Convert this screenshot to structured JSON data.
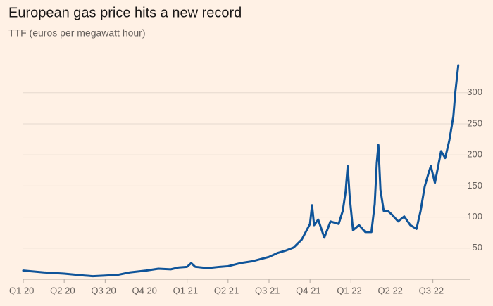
{
  "chart_data": {
    "type": "line",
    "title": "European gas price hits a new record",
    "subtitle": "TTF (euros per megawatt hour)",
    "x": [
      0,
      0.5,
      1.0,
      1.5,
      1.7,
      2.0,
      2.3,
      2.6,
      3.0,
      3.3,
      3.6,
      3.8,
      4.0,
      4.1,
      4.2,
      4.5,
      4.8,
      5.0,
      5.3,
      5.6,
      6.0,
      6.2,
      6.4,
      6.6,
      6.8,
      7.0,
      7.05,
      7.1,
      7.2,
      7.35,
      7.5,
      7.7,
      7.8,
      7.87,
      7.92,
      7.97,
      8.05,
      8.2,
      8.35,
      8.5,
      8.58,
      8.63,
      8.67,
      8.72,
      8.8,
      8.9,
      9.0,
      9.15,
      9.3,
      9.45,
      9.6,
      9.7,
      9.8,
      9.9,
      9.95,
      10.05,
      10.2,
      10.3,
      10.4,
      10.5,
      10.55,
      10.62
    ],
    "series": [
      {
        "name": "TTF",
        "color": "#0f5499",
        "values": [
          14,
          11,
          9,
          6,
          5,
          6,
          7,
          11,
          14,
          17,
          16,
          19,
          20,
          26,
          20,
          18,
          20,
          21,
          26,
          29,
          36,
          42,
          46,
          51,
          64,
          89,
          119,
          87,
          96,
          67,
          93,
          89,
          110,
          141,
          182,
          132,
          79,
          87,
          76,
          76,
          121,
          187,
          216,
          144,
          110,
          110,
          104,
          93,
          101,
          87,
          81,
          110,
          149,
          172,
          182,
          155,
          206,
          195,
          223,
          262,
          302,
          344
        ]
      }
    ],
    "xlim": [
      0,
      10.9
    ],
    "xticks": [
      {
        "value": 0,
        "label": "Q1 20"
      },
      {
        "value": 1,
        "label": "Q2 20"
      },
      {
        "value": 2,
        "label": "Q3 20"
      },
      {
        "value": 3,
        "label": "Q4 20"
      },
      {
        "value": 4,
        "label": "Q1 21"
      },
      {
        "value": 5,
        "label": "Q2 21"
      },
      {
        "value": 6,
        "label": "Q3 21"
      },
      {
        "value": 7,
        "label": "Q4 21"
      },
      {
        "value": 8,
        "label": "Q1 22"
      },
      {
        "value": 9,
        "label": "Q2 22"
      },
      {
        "value": 10,
        "label": "Q3 22"
      }
    ],
    "ylim": [
      0,
      350
    ],
    "yticks": [
      50,
      100,
      150,
      200,
      250,
      300
    ],
    "grid": true
  }
}
